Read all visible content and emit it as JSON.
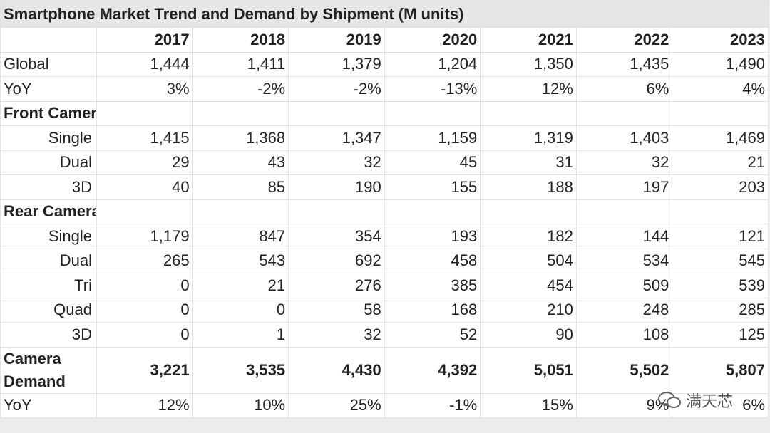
{
  "table": {
    "title": "Smartphone Market Trend and Demand by Shipment (M units)",
    "columns": [
      "2017",
      "2018",
      "2019",
      "2020",
      "2021",
      "2022",
      "2023"
    ],
    "blocks": [
      {
        "rows": [
          {
            "label": "Global",
            "cells": [
              "1,444",
              "1,411",
              "1,379",
              "1,204",
              "1,350",
              "1,435",
              "1,490"
            ]
          },
          {
            "label": "YoY",
            "cells": [
              "3%",
              "-2%",
              "-2%",
              "-13%",
              "12%",
              "6%",
              "4%"
            ]
          }
        ]
      },
      {
        "heading": "Front Camera",
        "rows": [
          {
            "label": "Single",
            "cells": [
              "1,415",
              "1,368",
              "1,347",
              "1,159",
              "1,319",
              "1,403",
              "1,469"
            ]
          },
          {
            "label": "Dual",
            "cells": [
              "29",
              "43",
              "32",
              "45",
              "31",
              "32",
              "21"
            ]
          },
          {
            "label": "3D",
            "cells": [
              "40",
              "85",
              "190",
              "155",
              "188",
              "197",
              "203"
            ]
          }
        ]
      },
      {
        "heading": "Rear Camera",
        "rows": [
          {
            "label": "Single",
            "cells": [
              "1,179",
              "847",
              "354",
              "193",
              "182",
              "144",
              "121"
            ]
          },
          {
            "label": "Dual",
            "cells": [
              "265",
              "543",
              "692",
              "458",
              "504",
              "534",
              "545"
            ]
          },
          {
            "label": "Tri",
            "cells": [
              "0",
              "21",
              "276",
              "385",
              "454",
              "509",
              "539"
            ]
          },
          {
            "label": "Quad",
            "cells": [
              "0",
              "0",
              "58",
              "168",
              "210",
              "248",
              "285"
            ]
          },
          {
            "label": "3D",
            "cells": [
              "0",
              "1",
              "32",
              "52",
              "90",
              "108",
              "125"
            ]
          }
        ]
      },
      {
        "rows": [
          {
            "label": "Camera Demand",
            "cells": [
              "3,221",
              "3,535",
              "4,430",
              "4,392",
              "5,051",
              "5,502",
              "5,807"
            ]
          },
          {
            "label": "YoY",
            "cells": [
              "12%",
              "10%",
              "25%",
              "-1%",
              "15%",
              "9%",
              "6%"
            ]
          }
        ]
      }
    ],
    "watermark": "满天芯"
  }
}
